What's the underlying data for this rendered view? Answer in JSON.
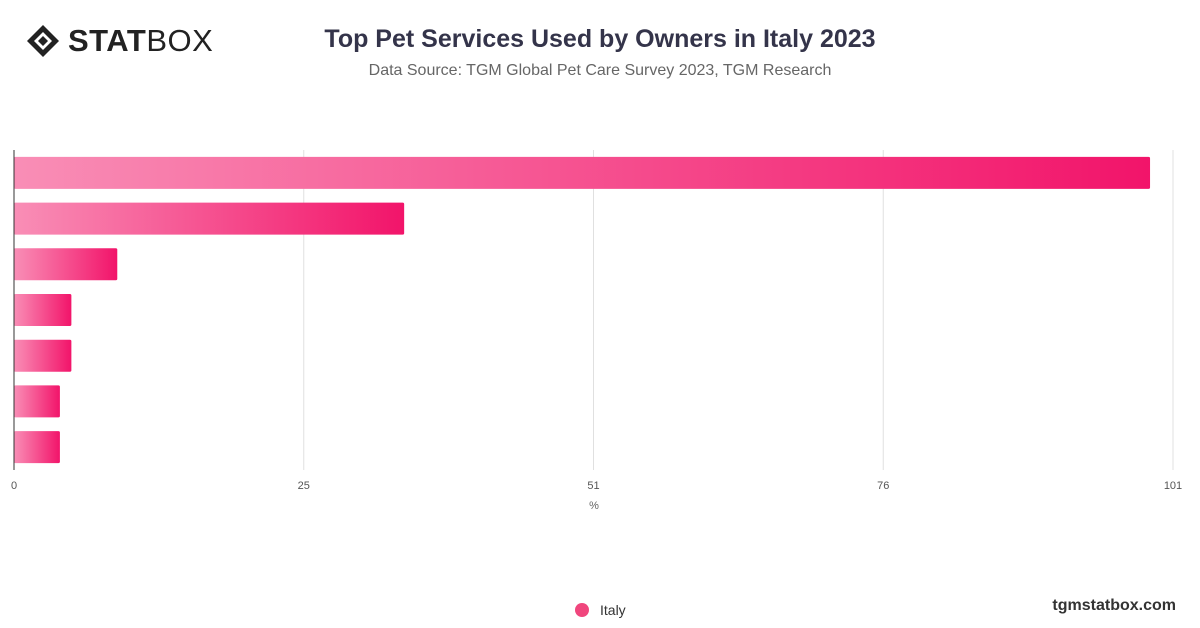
{
  "header": {
    "logo_text_bold": "STAT",
    "logo_text_light": "BOX",
    "title": "Top Pet Services Used by Owners in Italy 2023",
    "subtitle": "Data Source: TGM Global Pet Care Survey 2023, TGM Research"
  },
  "chart_data": {
    "type": "bar",
    "orientation": "horizontal",
    "title": "Top Pet Services Used by Owners in Italy 2023",
    "xlabel": "%",
    "ylabel": "",
    "xlim": [
      0,
      101
    ],
    "ticks": [
      "0",
      "25",
      "51",
      "76",
      "101"
    ],
    "tick_values": [
      0,
      25.25,
      50.5,
      75.75,
      101
    ],
    "grid": true,
    "category_labels_visible": false,
    "series": [
      {
        "name": "Italy",
        "values": [
          99.0,
          34.0,
          9.0,
          5.0,
          5.0,
          4.0,
          4.0
        ]
      }
    ],
    "bar_color_start": "#f98eb6",
    "bar_color_end": "#f2146a"
  },
  "legend": {
    "items": [
      {
        "label": "Italy",
        "color": "#f0467d"
      }
    ]
  },
  "footer": {
    "brand": "tgmstatbox.com"
  }
}
